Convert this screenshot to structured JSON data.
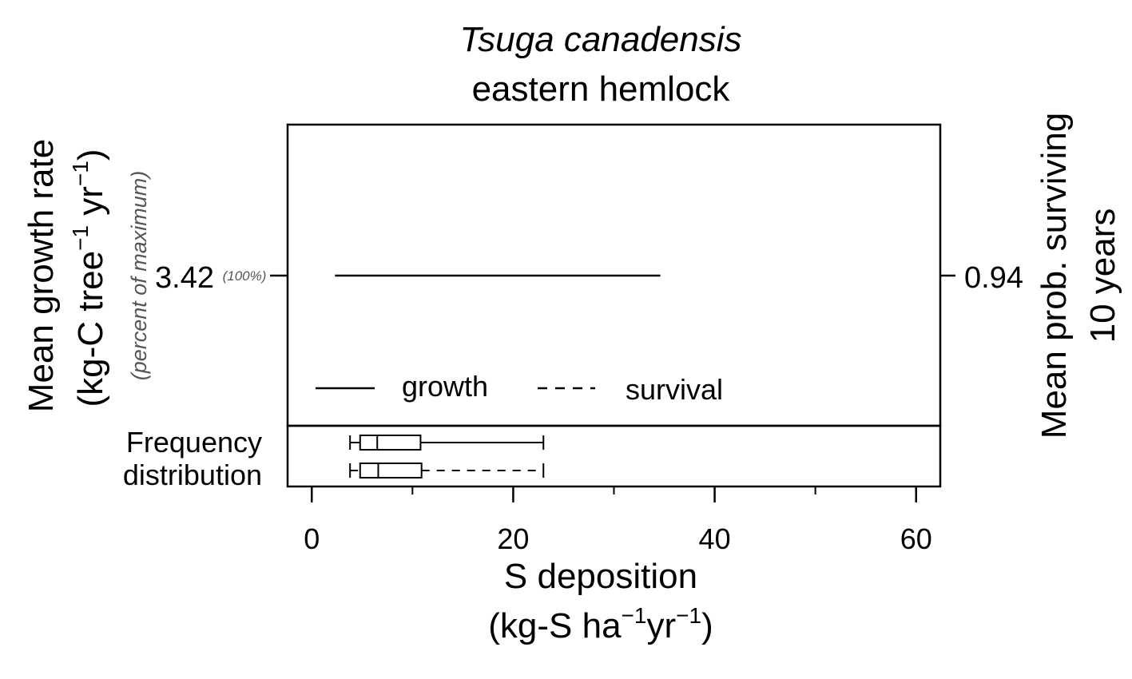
{
  "chart_data": {
    "type": "line",
    "title": "Tsuga canadensis",
    "subtitle": "eastern hemlock",
    "xlabel": {
      "line1": "S deposition",
      "line2_parts": [
        "(kg-S ha",
        "−1",
        "yr",
        "−1",
        ")"
      ]
    },
    "ylabel_left": {
      "line1": "Mean growth rate",
      "line2_parts": [
        "(kg-C tree",
        "−1",
        " yr",
        "−1",
        ")"
      ],
      "note": "(percent of maximum)"
    },
    "ylabel_right": {
      "line1": "Mean prob. surviving",
      "line2": "10 years"
    },
    "x_ticks": [
      0,
      20,
      40,
      60
    ],
    "x_minor_ticks": [
      10,
      30,
      50
    ],
    "xlim": [
      -2.4,
      62.4
    ],
    "left_tick": {
      "label": "3.42",
      "percent": "(100%)"
    },
    "right_tick": {
      "label": "0.94"
    },
    "series": [
      {
        "name": "growth",
        "style": "solid",
        "x": [
          2.3,
          34.6
        ],
        "y": [
          3.42,
          3.42
        ]
      },
      {
        "name": "survival",
        "style": "dashed",
        "x": [],
        "y": []
      }
    ],
    "legend": {
      "placement": "bottom-left",
      "entries": [
        "growth",
        "survival"
      ]
    },
    "frequency_distribution": {
      "label_line1": "Frequency",
      "label_line2": "distribution",
      "boxes": [
        {
          "series": "growth",
          "style": "solid",
          "min": 3.8,
          "q1": 4.8,
          "median": 6.5,
          "q3": 10.8,
          "max": 23.0
        },
        {
          "series": "survival",
          "style": "dashed",
          "min": 3.8,
          "q1": 4.8,
          "median": 6.6,
          "q3": 10.9,
          "max": 23.0
        }
      ]
    }
  }
}
